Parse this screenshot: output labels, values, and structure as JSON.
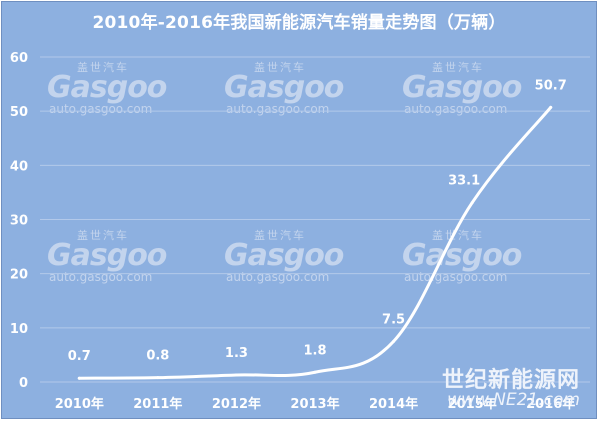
{
  "chart_data": {
    "type": "line",
    "title": "2010年-2016年我国新能源汽车销量走势图（万辆）",
    "categories": [
      "2010年",
      "2011年",
      "2012年",
      "2013年",
      "2014年",
      "2015年",
      "2016年"
    ],
    "series": [
      {
        "values": [
          0.7,
          0.8,
          1.3,
          1.8,
          7.5,
          33.1,
          50.7
        ]
      }
    ],
    "data_labels": [
      "0.7",
      "0.8",
      "1.3",
      "1.8",
      "7.5",
      "33.1",
      "50.7"
    ],
    "y_ticks": [
      "0",
      "10",
      "20",
      "30",
      "40",
      "50",
      "60"
    ],
    "ylim": [
      0,
      60
    ],
    "grid": true,
    "line_color": "#ffffff",
    "background_color": "#8db0e0"
  },
  "watermark": {
    "cn": "盖世汽车",
    "brand": "Gasgoo",
    "url": "auto.gasgoo.com"
  },
  "source_logo": {
    "cn": "世纪新能源网",
    "url": "www.NE21.com"
  }
}
